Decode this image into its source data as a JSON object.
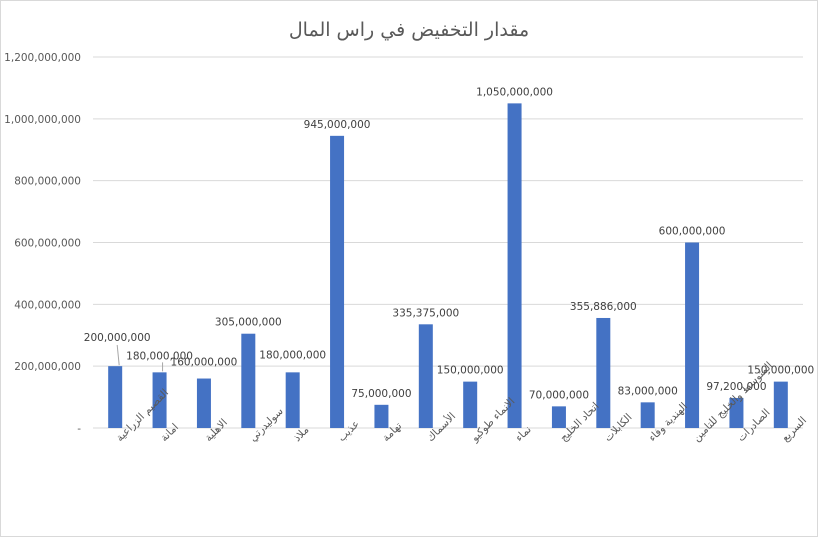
{
  "chart_data": {
    "type": "bar",
    "title": "مقدار التخفيض في راس المال",
    "categories": [
      "القصيم الزراعية",
      "امانة",
      "الاهلية",
      "سوليدرتي",
      "ملاذ",
      "عذيب",
      "تهامة",
      "الأسماك",
      "الانماء طوكيو",
      "نماء",
      "اتحاد الخليج",
      "الكابلات",
      "الهندية وفاء",
      "المتوسط والخليج للتامين",
      "الصادرات",
      "السريع"
    ],
    "values": [
      200000000,
      180000000,
      160000000,
      305000000,
      180000000,
      945000000,
      75000000,
      335375000,
      150000000,
      1050000000,
      70000000,
      355886000,
      83000000,
      600000000,
      97200000,
      150000000
    ],
    "data_labels": [
      "200,000,000",
      "180,000,000",
      "160,000,000",
      "305,000,000",
      "180,000,000",
      "945,000,000",
      "75,000,000",
      "335,375,000",
      "150,000,000",
      "1,050,000,000",
      "70,000,000",
      "355,886,000",
      "83,000,000",
      "600,000,000",
      "97,200,000",
      "150,000,000"
    ],
    "y_ticks": [
      "-",
      "200,000,000",
      "400,000,000",
      "600,000,000",
      "800,000,000",
      "1,000,000,000",
      "1,200,000,000"
    ],
    "ylim": [
      0,
      1200000000
    ],
    "grid": true,
    "bar_color": "#4472c4",
    "grid_color": "#d9d9d9",
    "text_color": "#595959"
  }
}
